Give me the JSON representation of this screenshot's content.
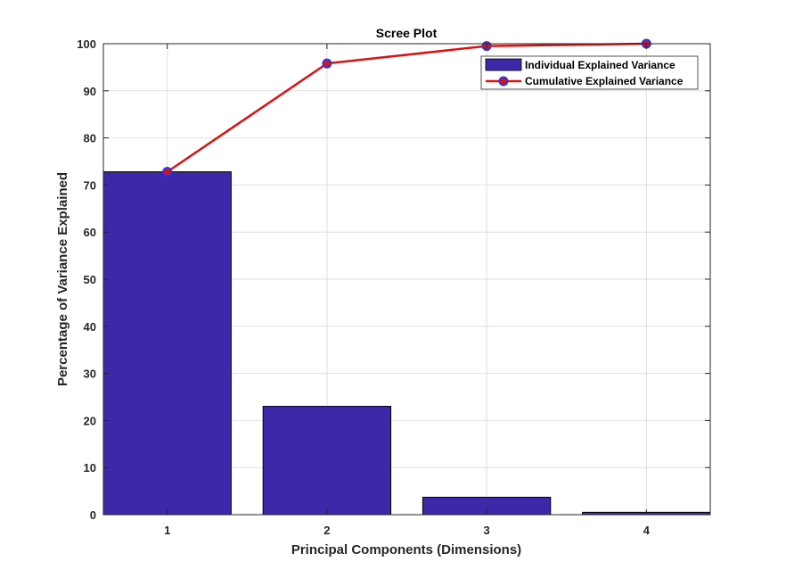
{
  "chart_data": {
    "type": "bar",
    "title": "Scree Plot",
    "xlabel": "Principal Components (Dimensions)",
    "ylabel": "Percentage of Variance Explained",
    "categories": [
      "1",
      "2",
      "3",
      "4"
    ],
    "ylim": [
      0,
      100
    ],
    "yticks": [
      "0",
      "10",
      "20",
      "30",
      "40",
      "50",
      "60",
      "70",
      "80",
      "90",
      "100"
    ],
    "grid": true,
    "legend_position": "top-right",
    "series": [
      {
        "name": "Individual Explained Variance",
        "kind": "bar",
        "values": [
          72.8,
          23.0,
          3.7,
          0.5
        ],
        "color": "#3c28a8"
      },
      {
        "name": "Cumulative Explained Variance",
        "kind": "line",
        "values": [
          72.8,
          95.8,
          99.5,
          100.0
        ],
        "color": "#e01010",
        "marker_color": "#2838e0"
      }
    ]
  }
}
